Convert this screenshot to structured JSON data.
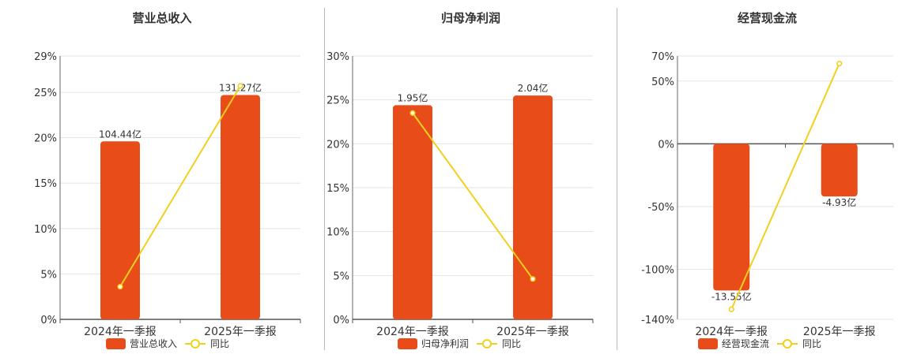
{
  "chart_data": [
    {
      "type": "bar",
      "title": "营业总收入",
      "categories": [
        "2024年一季报",
        "2025年一季报"
      ],
      "series": [
        {
          "name": "营业总收入",
          "type": "bar",
          "values": [
            104.44,
            131.27
          ],
          "value_labels": [
            "104.44亿",
            "131.27亿"
          ],
          "plotted_pct": [
            19.6,
            24.7
          ]
        },
        {
          "name": "同比",
          "type": "line",
          "values_pct": [
            3.6,
            25.7
          ]
        }
      ],
      "yticks": [
        "29%",
        "25%",
        "20%",
        "15%",
        "10%",
        "5%",
        "0%"
      ],
      "ylim": [
        0,
        29
      ],
      "grid": true,
      "legend": "bottom",
      "colors": {
        "bar": "#e84c19",
        "line": "#f2d01e"
      }
    },
    {
      "type": "bar",
      "title": "归母净利润",
      "categories": [
        "2024年一季报",
        "2025年一季报"
      ],
      "series": [
        {
          "name": "归母净利润",
          "type": "bar",
          "values": [
            1.95,
            2.04
          ],
          "value_labels": [
            "1.95亿",
            "2.04亿"
          ],
          "plotted_pct": [
            24.4,
            25.5
          ]
        },
        {
          "name": "同比",
          "type": "line",
          "values_pct": [
            23.5,
            4.6
          ]
        }
      ],
      "yticks": [
        "30%",
        "25%",
        "20%",
        "15%",
        "10%",
        "5%",
        "0%"
      ],
      "ylim": [
        0,
        30
      ],
      "grid": true,
      "legend": "bottom",
      "colors": {
        "bar": "#e84c19",
        "line": "#f2d01e"
      }
    },
    {
      "type": "bar",
      "title": "经营现金流",
      "categories": [
        "2024年一季报",
        "2025年一季报"
      ],
      "series": [
        {
          "name": "经营现金流",
          "type": "bar",
          "values": [
            -13.55,
            -4.93
          ],
          "value_labels": [
            "-13.55亿",
            "-4.93亿"
          ],
          "plotted_pct": [
            -117,
            -42
          ]
        },
        {
          "name": "同比",
          "type": "line",
          "values_pct": [
            -132,
            64
          ]
        }
      ],
      "yticks": [
        "70%",
        "50%",
        "0%",
        "-50%",
        "-100%",
        "-140%"
      ],
      "ylim": [
        -140,
        70
      ],
      "grid": true,
      "legend": "bottom",
      "colors": {
        "bar": "#e84c19",
        "line": "#f2d01e"
      }
    }
  ]
}
